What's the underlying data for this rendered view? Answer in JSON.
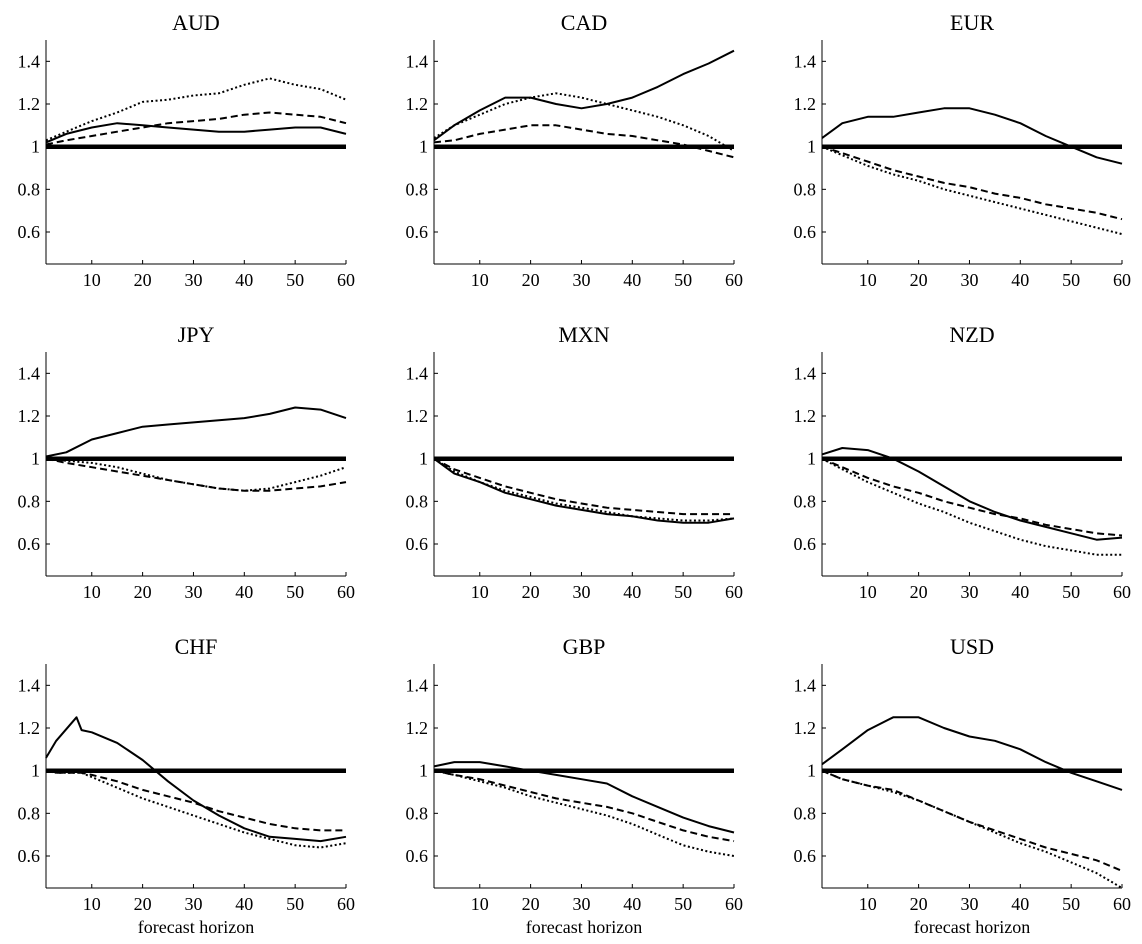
{
  "chart_data": [
    {
      "type": "line",
      "title": "AUD",
      "xlabel": "",
      "x": [
        1,
        5,
        10,
        15,
        20,
        25,
        30,
        35,
        40,
        45,
        50,
        55,
        60
      ],
      "xlim": [
        1,
        60
      ],
      "ylim": [
        0.45,
        1.5
      ],
      "xticks": [
        "10",
        "20",
        "30",
        "40",
        "50",
        "60"
      ],
      "yticks": [
        "0.6",
        "0.8",
        "1",
        "1.2",
        "1.4"
      ],
      "series": [
        {
          "values": [
            1.02,
            1.06,
            1.09,
            1.11,
            1.1,
            1.09,
            1.08,
            1.07,
            1.07,
            1.08,
            1.09,
            1.09,
            1.06
          ]
        },
        {
          "values": [
            1.01,
            1.03,
            1.05,
            1.07,
            1.09,
            1.11,
            1.12,
            1.13,
            1.15,
            1.16,
            1.15,
            1.14,
            1.11
          ]
        },
        {
          "values": [
            1.03,
            1.07,
            1.12,
            1.16,
            1.21,
            1.22,
            1.24,
            1.25,
            1.29,
            1.32,
            1.29,
            1.27,
            1.22
          ]
        },
        {
          "values": [
            1,
            1,
            1,
            1,
            1,
            1,
            1,
            1,
            1,
            1,
            1,
            1,
            1
          ]
        }
      ]
    },
    {
      "type": "line",
      "title": "CAD",
      "xlabel": "",
      "x": [
        1,
        5,
        10,
        15,
        20,
        25,
        30,
        35,
        40,
        45,
        50,
        55,
        60
      ],
      "xlim": [
        1,
        60
      ],
      "ylim": [
        0.45,
        1.5
      ],
      "xticks": [
        "10",
        "20",
        "30",
        "40",
        "50",
        "60"
      ],
      "yticks": [
        "0.6",
        "0.8",
        "1",
        "1.2",
        "1.4"
      ],
      "series": [
        {
          "values": [
            1.03,
            1.1,
            1.17,
            1.23,
            1.23,
            1.2,
            1.18,
            1.2,
            1.23,
            1.28,
            1.34,
            1.39,
            1.45
          ]
        },
        {
          "values": [
            1.02,
            1.03,
            1.06,
            1.08,
            1.1,
            1.1,
            1.08,
            1.06,
            1.05,
            1.03,
            1.01,
            0.98,
            0.95
          ]
        },
        {
          "values": [
            1.04,
            1.1,
            1.15,
            1.2,
            1.23,
            1.25,
            1.23,
            1.2,
            1.17,
            1.14,
            1.1,
            1.05,
            0.98
          ]
        },
        {
          "values": [
            1,
            1,
            1,
            1,
            1,
            1,
            1,
            1,
            1,
            1,
            1,
            1,
            1
          ]
        }
      ]
    },
    {
      "type": "line",
      "title": "EUR",
      "xlabel": "",
      "x": [
        1,
        5,
        10,
        15,
        20,
        25,
        30,
        35,
        40,
        45,
        50,
        55,
        60
      ],
      "xlim": [
        1,
        60
      ],
      "ylim": [
        0.45,
        1.5
      ],
      "xticks": [
        "10",
        "20",
        "30",
        "40",
        "50",
        "60"
      ],
      "yticks": [
        "0.6",
        "0.8",
        "1",
        "1.2",
        "1.4"
      ],
      "series": [
        {
          "values": [
            1.04,
            1.11,
            1.14,
            1.14,
            1.16,
            1.18,
            1.18,
            1.15,
            1.11,
            1.05,
            1.0,
            0.95,
            0.92
          ]
        },
        {
          "values": [
            1.0,
            0.97,
            0.93,
            0.89,
            0.86,
            0.83,
            0.81,
            0.78,
            0.76,
            0.73,
            0.71,
            0.69,
            0.66
          ]
        },
        {
          "values": [
            1.0,
            0.96,
            0.91,
            0.87,
            0.84,
            0.8,
            0.77,
            0.74,
            0.71,
            0.68,
            0.65,
            0.62,
            0.59
          ]
        },
        {
          "values": [
            1,
            1,
            1,
            1,
            1,
            1,
            1,
            1,
            1,
            1,
            1,
            1,
            1
          ]
        }
      ]
    },
    {
      "type": "line",
      "title": "JPY",
      "xlabel": "",
      "x": [
        1,
        5,
        10,
        15,
        20,
        25,
        30,
        35,
        40,
        45,
        50,
        55,
        60
      ],
      "xlim": [
        1,
        60
      ],
      "ylim": [
        0.45,
        1.5
      ],
      "xticks": [
        "10",
        "20",
        "30",
        "40",
        "50",
        "60"
      ],
      "yticks": [
        "0.6",
        "0.8",
        "1",
        "1.2",
        "1.4"
      ],
      "series": [
        {
          "values": [
            1.01,
            1.03,
            1.09,
            1.12,
            1.15,
            1.16,
            1.17,
            1.18,
            1.19,
            1.21,
            1.24,
            1.23,
            1.19
          ]
        },
        {
          "values": [
            1.0,
            0.98,
            0.96,
            0.94,
            0.92,
            0.9,
            0.88,
            0.86,
            0.85,
            0.85,
            0.86,
            0.87,
            0.89
          ]
        },
        {
          "values": [
            1.0,
            0.99,
            0.98,
            0.96,
            0.93,
            0.9,
            0.88,
            0.86,
            0.85,
            0.86,
            0.89,
            0.92,
            0.96
          ]
        },
        {
          "values": [
            1,
            1,
            1,
            1,
            1,
            1,
            1,
            1,
            1,
            1,
            1,
            1,
            1
          ]
        }
      ]
    },
    {
      "type": "line",
      "title": "MXN",
      "xlabel": "",
      "x": [
        1,
        5,
        10,
        15,
        20,
        25,
        30,
        35,
        40,
        45,
        50,
        55,
        60
      ],
      "xlim": [
        1,
        60
      ],
      "ylim": [
        0.45,
        1.5
      ],
      "xticks": [
        "10",
        "20",
        "30",
        "40",
        "50",
        "60"
      ],
      "yticks": [
        "0.6",
        "0.8",
        "1",
        "1.2",
        "1.4"
      ],
      "series": [
        {
          "values": [
            1.0,
            0.93,
            0.89,
            0.84,
            0.81,
            0.78,
            0.76,
            0.74,
            0.73,
            0.71,
            0.7,
            0.7,
            0.72
          ]
        },
        {
          "values": [
            1.0,
            0.95,
            0.91,
            0.87,
            0.84,
            0.81,
            0.79,
            0.77,
            0.76,
            0.75,
            0.74,
            0.74,
            0.74
          ]
        },
        {
          "values": [
            1.0,
            0.94,
            0.89,
            0.85,
            0.82,
            0.79,
            0.77,
            0.75,
            0.73,
            0.72,
            0.71,
            0.71,
            0.72
          ]
        },
        {
          "values": [
            1,
            1,
            1,
            1,
            1,
            1,
            1,
            1,
            1,
            1,
            1,
            1,
            1
          ]
        }
      ]
    },
    {
      "type": "line",
      "title": "NZD",
      "xlabel": "",
      "x": [
        1,
        5,
        10,
        15,
        20,
        25,
        30,
        35,
        40,
        45,
        50,
        55,
        60
      ],
      "xlim": [
        1,
        60
      ],
      "ylim": [
        0.45,
        1.5
      ],
      "xticks": [
        "10",
        "20",
        "30",
        "40",
        "50",
        "60"
      ],
      "yticks": [
        "0.6",
        "0.8",
        "1",
        "1.2",
        "1.4"
      ],
      "series": [
        {
          "values": [
            1.02,
            1.05,
            1.04,
            1.0,
            0.94,
            0.87,
            0.8,
            0.75,
            0.71,
            0.68,
            0.65,
            0.62,
            0.63
          ]
        },
        {
          "values": [
            1.0,
            0.96,
            0.91,
            0.87,
            0.84,
            0.8,
            0.77,
            0.74,
            0.72,
            0.69,
            0.67,
            0.65,
            0.64
          ]
        },
        {
          "values": [
            1.0,
            0.95,
            0.89,
            0.84,
            0.79,
            0.75,
            0.7,
            0.66,
            0.62,
            0.59,
            0.57,
            0.55,
            0.55
          ]
        },
        {
          "values": [
            1,
            1,
            1,
            1,
            1,
            1,
            1,
            1,
            1,
            1,
            1,
            1,
            1
          ]
        }
      ]
    },
    {
      "type": "line",
      "title": "CHF",
      "xlabel": "forecast horizon",
      "x": [
        1,
        3,
        7,
        8,
        10,
        15,
        20,
        25,
        30,
        35,
        40,
        45,
        50,
        55,
        60
      ],
      "xlim": [
        1,
        60
      ],
      "ylim": [
        0.45,
        1.5
      ],
      "xticks": [
        "10",
        "20",
        "30",
        "40",
        "50",
        "60"
      ],
      "yticks": [
        "0.6",
        "0.8",
        "1",
        "1.2",
        "1.4"
      ],
      "series": [
        {
          "values": [
            1.06,
            1.14,
            1.25,
            1.19,
            1.18,
            1.13,
            1.05,
            0.95,
            0.86,
            0.79,
            0.73,
            0.69,
            0.68,
            0.67,
            0.69
          ]
        },
        {
          "values": [
            1.0,
            0.99,
            0.99,
            0.99,
            0.98,
            0.95,
            0.91,
            0.88,
            0.85,
            0.81,
            0.78,
            0.75,
            0.73,
            0.72,
            0.72
          ]
        },
        {
          "values": [
            1.0,
            0.99,
            0.99,
            0.99,
            0.97,
            0.92,
            0.87,
            0.83,
            0.79,
            0.75,
            0.71,
            0.68,
            0.65,
            0.64,
            0.66
          ]
        },
        {
          "values": [
            1,
            1,
            1,
            1,
            1,
            1,
            1,
            1,
            1,
            1,
            1,
            1,
            1,
            1,
            1
          ]
        }
      ]
    },
    {
      "type": "line",
      "title": "GBP",
      "xlabel": "forecast horizon",
      "x": [
        1,
        5,
        10,
        15,
        20,
        25,
        30,
        35,
        40,
        45,
        50,
        55,
        60
      ],
      "xlim": [
        1,
        60
      ],
      "ylim": [
        0.45,
        1.5
      ],
      "xticks": [
        "10",
        "20",
        "30",
        "40",
        "50",
        "60"
      ],
      "yticks": [
        "0.6",
        "0.8",
        "1",
        "1.2",
        "1.4"
      ],
      "series": [
        {
          "values": [
            1.02,
            1.04,
            1.04,
            1.02,
            1.0,
            0.98,
            0.96,
            0.94,
            0.88,
            0.83,
            0.78,
            0.74,
            0.71
          ]
        },
        {
          "values": [
            1.0,
            0.98,
            0.96,
            0.93,
            0.9,
            0.87,
            0.85,
            0.83,
            0.8,
            0.76,
            0.72,
            0.69,
            0.67
          ]
        },
        {
          "values": [
            1.0,
            0.98,
            0.95,
            0.92,
            0.88,
            0.85,
            0.82,
            0.79,
            0.75,
            0.7,
            0.65,
            0.62,
            0.6
          ]
        },
        {
          "values": [
            1,
            1,
            1,
            1,
            1,
            1,
            1,
            1,
            1,
            1,
            1,
            1,
            1
          ]
        }
      ]
    },
    {
      "type": "line",
      "title": "USD",
      "xlabel": "forecast horizon",
      "x": [
        1,
        5,
        10,
        15,
        20,
        25,
        30,
        35,
        40,
        45,
        50,
        55,
        60
      ],
      "xlim": [
        1,
        60
      ],
      "ylim": [
        0.45,
        1.5
      ],
      "xticks": [
        "10",
        "20",
        "30",
        "40",
        "50",
        "60"
      ],
      "yticks": [
        "0.6",
        "0.8",
        "1",
        "1.2",
        "1.4"
      ],
      "series": [
        {
          "values": [
            1.03,
            1.1,
            1.19,
            1.25,
            1.25,
            1.2,
            1.16,
            1.14,
            1.1,
            1.04,
            0.99,
            0.95,
            0.91
          ]
        },
        {
          "values": [
            1.0,
            0.96,
            0.93,
            0.91,
            0.86,
            0.81,
            0.76,
            0.72,
            0.68,
            0.64,
            0.61,
            0.58,
            0.53
          ]
        },
        {
          "values": [
            1.0,
            0.96,
            0.93,
            0.9,
            0.86,
            0.81,
            0.76,
            0.71,
            0.66,
            0.62,
            0.57,
            0.52,
            0.45
          ]
        },
        {
          "values": [
            1,
            1,
            1,
            1,
            1,
            1,
            1,
            1,
            1,
            1,
            1,
            1,
            1
          ]
        }
      ]
    }
  ],
  "styles": {
    "line_color": "#000000",
    "series_styles": [
      "solid",
      "dashed",
      "dotted",
      "thick-solid"
    ]
  }
}
